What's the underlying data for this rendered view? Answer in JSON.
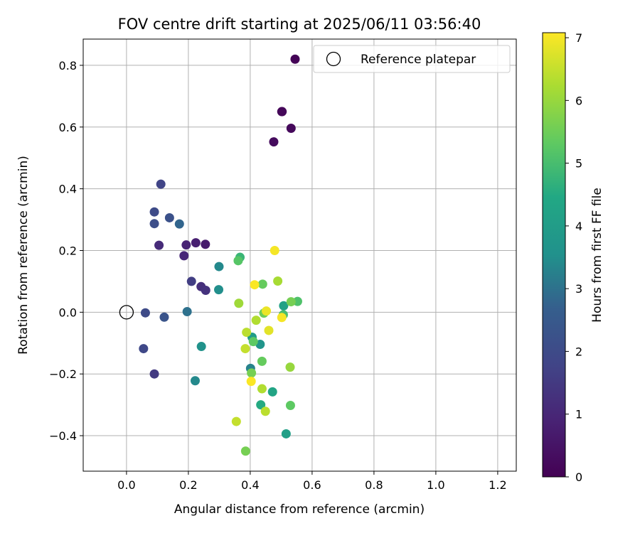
{
  "chart_data": {
    "type": "scatter",
    "title": "FOV centre drift starting at 2025/06/11 03:56:40",
    "xlabel": "Angular distance from reference (arcmin)",
    "ylabel": "Rotation from reference (arcmin)",
    "xlim": [
      -0.14,
      1.26
    ],
    "ylim": [
      -0.515,
      0.885
    ],
    "x_ticks": [
      0.0,
      0.2,
      0.4,
      0.6,
      0.8,
      1.0,
      1.2
    ],
    "x_tick_labels": [
      "0.0",
      "0.2",
      "0.4",
      "0.6",
      "0.8",
      "1.0",
      "1.2"
    ],
    "y_ticks": [
      -0.4,
      -0.2,
      0.0,
      0.2,
      0.4,
      0.6,
      0.8
    ],
    "y_tick_labels": [
      "−0.4",
      "−0.2",
      "0.0",
      "0.2",
      "0.4",
      "0.6",
      "0.8"
    ],
    "grid": true,
    "legend": {
      "placement": "top-right",
      "entries": [
        "Reference platepar"
      ]
    },
    "reference_point": {
      "x": 0.0,
      "y": 0.0
    },
    "colorbar": {
      "label": "Hours from first FF file",
      "range": [
        0,
        7.08
      ],
      "ticks": [
        0,
        1,
        2,
        3,
        4,
        5,
        6,
        7
      ],
      "tick_labels": [
        "0",
        "1",
        "2",
        "3",
        "4",
        "5",
        "6",
        "7"
      ],
      "colormap": "viridis"
    },
    "points": [
      {
        "x": 0.545,
        "y": 0.82,
        "h": 0.05
      },
      {
        "x": 0.502,
        "y": 0.65,
        "h": 0.1
      },
      {
        "x": 0.503,
        "y": 0.65,
        "h": 0.15
      },
      {
        "x": 0.532,
        "y": 0.596,
        "h": 0.2
      },
      {
        "x": 0.476,
        "y": 0.552,
        "h": 0.25
      },
      {
        "x": 0.255,
        "y": 0.22,
        "h": 0.7
      },
      {
        "x": 0.224,
        "y": 0.225,
        "h": 0.8
      },
      {
        "x": 0.193,
        "y": 0.218,
        "h": 0.9
      },
      {
        "x": 0.186,
        "y": 0.183,
        "h": 1.0
      },
      {
        "x": 0.105,
        "y": 0.217,
        "h": 1.1
      },
      {
        "x": 0.241,
        "y": 0.083,
        "h": 1.2
      },
      {
        "x": 0.256,
        "y": 0.071,
        "h": 1.3
      },
      {
        "x": 0.09,
        "y": -0.2,
        "h": 1.5
      },
      {
        "x": 0.21,
        "y": 0.1,
        "h": 1.6
      },
      {
        "x": 0.111,
        "y": 0.415,
        "h": 1.8
      },
      {
        "x": 0.09,
        "y": 0.325,
        "h": 2.0
      },
      {
        "x": 0.09,
        "y": 0.287,
        "h": 2.1
      },
      {
        "x": 0.139,
        "y": 0.306,
        "h": 2.2
      },
      {
        "x": 0.061,
        "y": -0.002,
        "h": 2.0
      },
      {
        "x": 0.055,
        "y": -0.118,
        "h": 1.9
      },
      {
        "x": 0.122,
        "y": -0.016,
        "h": 2.3
      },
      {
        "x": 0.171,
        "y": 0.286,
        "h": 2.8
      },
      {
        "x": 0.196,
        "y": 0.002,
        "h": 3.0
      },
      {
        "x": 0.299,
        "y": 0.148,
        "h": 3.4
      },
      {
        "x": 0.298,
        "y": 0.073,
        "h": 3.5
      },
      {
        "x": 0.242,
        "y": -0.111,
        "h": 3.6
      },
      {
        "x": 0.222,
        "y": -0.222,
        "h": 3.4
      },
      {
        "x": 0.401,
        "y": -0.182,
        "h": 3.3
      },
      {
        "x": 0.432,
        "y": -0.104,
        "h": 3.7
      },
      {
        "x": 0.406,
        "y": -0.081,
        "h": 4.0
      },
      {
        "x": 0.472,
        "y": -0.258,
        "h": 4.3
      },
      {
        "x": 0.434,
        "y": -0.3,
        "h": 4.5
      },
      {
        "x": 0.516,
        "y": -0.394,
        "h": 4.1
      },
      {
        "x": 0.367,
        "y": 0.178,
        "h": 4.8
      },
      {
        "x": 0.361,
        "y": 0.167,
        "h": 5.2
      },
      {
        "x": 0.508,
        "y": 0.021,
        "h": 4.2
      },
      {
        "x": 0.507,
        "y": -0.008,
        "h": 5.0
      },
      {
        "x": 0.44,
        "y": 0.091,
        "h": 5.4
      },
      {
        "x": 0.553,
        "y": 0.035,
        "h": 5.1
      },
      {
        "x": 0.532,
        "y": 0.034,
        "h": 5.6
      },
      {
        "x": 0.41,
        "y": -0.095,
        "h": 5.3
      },
      {
        "x": 0.444,
        "y": -0.003,
        "h": 5.5
      },
      {
        "x": 0.438,
        "y": -0.159,
        "h": 5.4
      },
      {
        "x": 0.404,
        "y": -0.197,
        "h": 5.6
      },
      {
        "x": 0.53,
        "y": -0.302,
        "h": 5.3
      },
      {
        "x": 0.529,
        "y": -0.178,
        "h": 6.0
      },
      {
        "x": 0.385,
        "y": -0.45,
        "h": 5.6
      },
      {
        "x": 0.363,
        "y": 0.029,
        "h": 6.1
      },
      {
        "x": 0.489,
        "y": 0.101,
        "h": 6.2
      },
      {
        "x": 0.419,
        "y": -0.026,
        "h": 6.3
      },
      {
        "x": 0.388,
        "y": -0.065,
        "h": 6.4
      },
      {
        "x": 0.384,
        "y": -0.118,
        "h": 6.5
      },
      {
        "x": 0.438,
        "y": -0.248,
        "h": 6.3
      },
      {
        "x": 0.449,
        "y": -0.321,
        "h": 6.4
      },
      {
        "x": 0.355,
        "y": -0.354,
        "h": 6.5
      },
      {
        "x": 0.46,
        "y": -0.059,
        "h": 6.8
      },
      {
        "x": 0.452,
        "y": 0.004,
        "h": 6.9
      },
      {
        "x": 0.479,
        "y": 0.2,
        "h": 7.0
      },
      {
        "x": 0.414,
        "y": 0.089,
        "h": 7.05
      },
      {
        "x": 0.502,
        "y": -0.017,
        "h": 7.0
      },
      {
        "x": 0.403,
        "y": -0.224,
        "h": 7.05
      }
    ]
  }
}
